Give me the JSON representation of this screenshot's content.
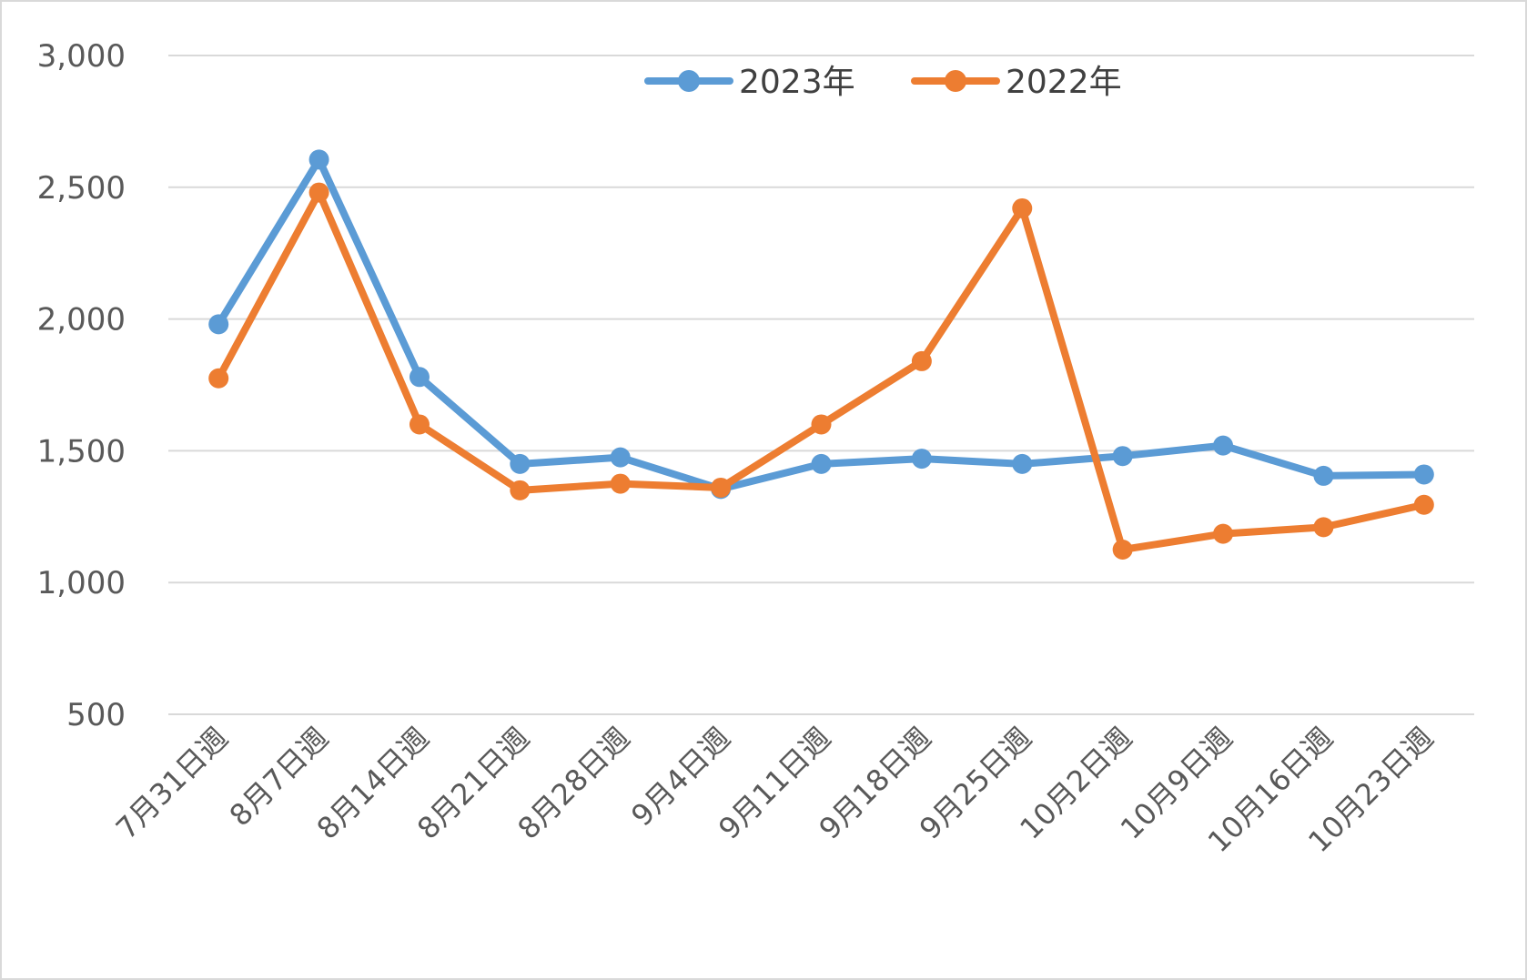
{
  "chart_data": {
    "type": "line",
    "categories": [
      "7月31日週",
      "8月7日週",
      "8月14日週",
      "8月21日週",
      "8月28日週",
      "9月4日週",
      "9月11日週",
      "9月18日週",
      "9月25日週",
      "10月2日週",
      "10月9日週",
      "10月16日週",
      "10月23日週"
    ],
    "series": [
      {
        "name": "2023年",
        "color": "#5b9bd5",
        "values": [
          1980,
          2605,
          1780,
          1450,
          1475,
          1355,
          1450,
          1470,
          1450,
          1480,
          1520,
          1405,
          1410
        ]
      },
      {
        "name": "2022年",
        "color": "#ed7d31",
        "values": [
          1775,
          2480,
          1600,
          1350,
          1375,
          1360,
          1600,
          1840,
          2420,
          1125,
          1185,
          1210,
          1295
        ]
      }
    ],
    "ylim": [
      500,
      3000
    ],
    "yticks": [
      "500",
      "1,000",
      "1,500",
      "2,000",
      "2,500",
      "3,000"
    ],
    "ytick_values": [
      500,
      1000,
      1500,
      2000,
      2500,
      3000
    ],
    "grid": true,
    "legend_position": "top"
  }
}
